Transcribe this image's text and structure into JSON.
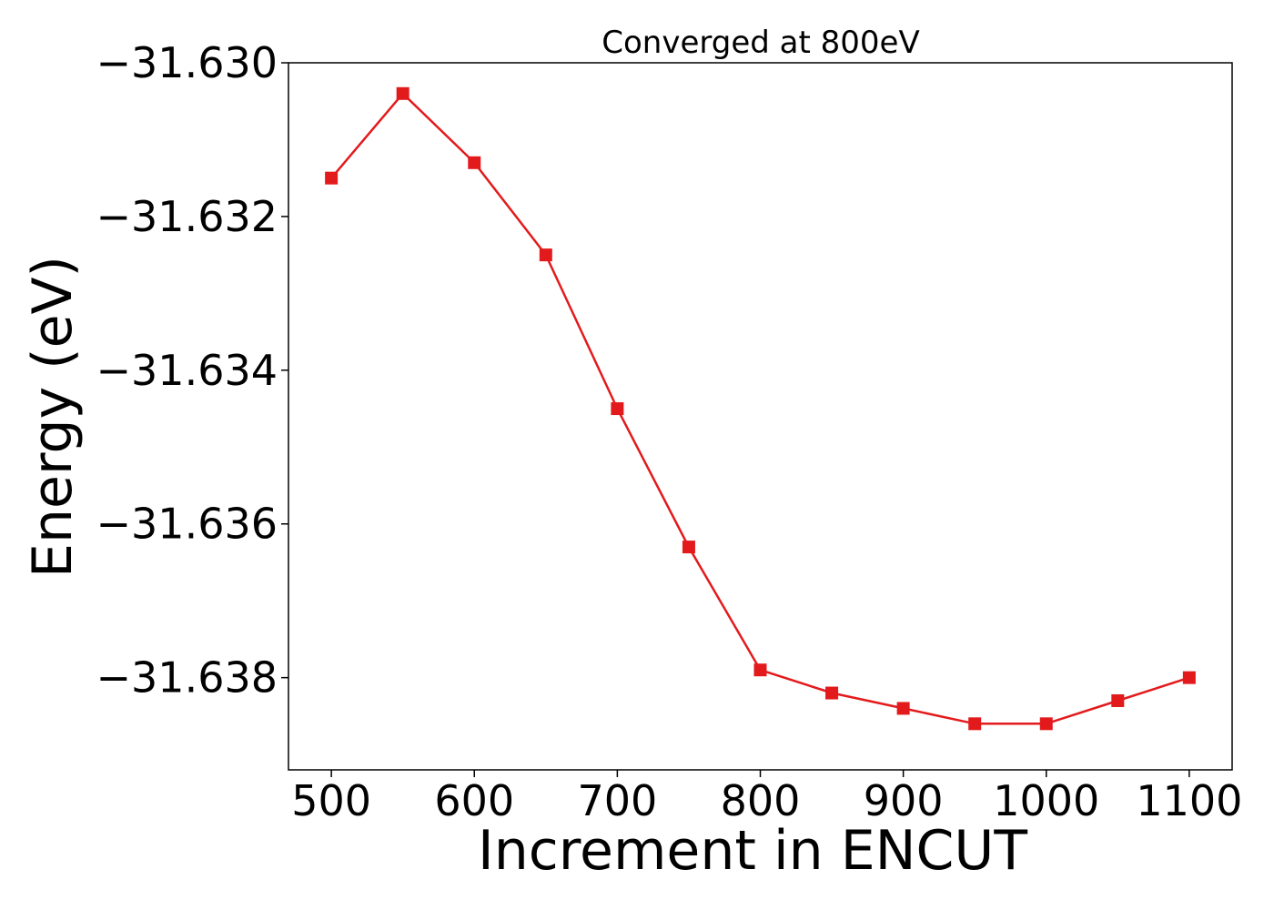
{
  "chart_data": {
    "type": "line",
    "title": "Converged at 800eV",
    "xlabel": "Increment in ENCUT",
    "ylabel": "Energy (eV)",
    "x": [
      500,
      550,
      600,
      650,
      700,
      750,
      800,
      850,
      900,
      950,
      1000,
      1050,
      1100
    ],
    "series": [
      {
        "values": [
          -31.6315,
          -31.6304,
          -31.6313,
          -31.6325,
          -31.6345,
          -31.6363,
          -31.6379,
          -31.6382,
          -31.6384,
          -31.6386,
          -31.6386,
          -31.6383,
          -31.638
        ],
        "color": "#e31a1c",
        "marker": "square"
      }
    ],
    "xlim": [
      470,
      1130
    ],
    "ylim": [
      -31.6392,
      -31.63
    ],
    "xticks": [
      500,
      600,
      700,
      800,
      900,
      1000,
      1100
    ],
    "yticks": [
      -31.63,
      -31.632,
      -31.634,
      -31.636,
      -31.638
    ],
    "xtick_labels": [
      "500",
      "600",
      "700",
      "800",
      "900",
      "1000",
      "1100"
    ],
    "ytick_labels": [
      "−31.630",
      "−31.632",
      "−31.634",
      "−31.636",
      "−31.638"
    ],
    "grid": false,
    "legend": false
  }
}
